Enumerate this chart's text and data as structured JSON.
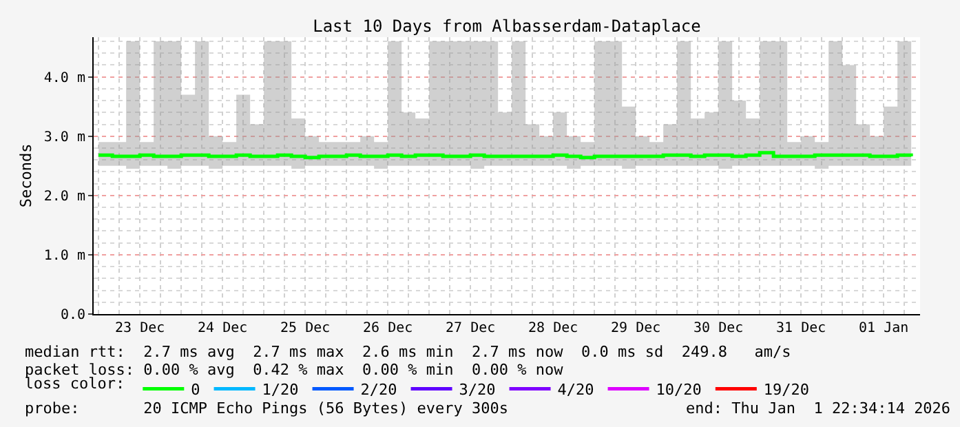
{
  "chart_data": {
    "type": "line",
    "title": "Last 10 Days from Albasserdam-Dataplace",
    "ylabel": "Seconds",
    "legend_title": "loss color:",
    "x": [
      "2025-12-23T00:00",
      "2025-12-23T04:00",
      "2025-12-23T08:00",
      "2025-12-23T12:00",
      "2025-12-23T16:00",
      "2025-12-23T20:00",
      "2025-12-24T00:00",
      "2025-12-24T04:00",
      "2025-12-24T08:00",
      "2025-12-24T12:00",
      "2025-12-24T16:00",
      "2025-12-24T20:00",
      "2025-12-25T00:00",
      "2025-12-25T04:00",
      "2025-12-25T08:00",
      "2025-12-25T12:00",
      "2025-12-25T16:00",
      "2025-12-25T20:00",
      "2025-12-26T00:00",
      "2025-12-26T04:00",
      "2025-12-26T08:00",
      "2025-12-26T12:00",
      "2025-12-26T16:00",
      "2025-12-26T20:00",
      "2025-12-27T00:00",
      "2025-12-27T04:00",
      "2025-12-27T08:00",
      "2025-12-27T12:00",
      "2025-12-27T16:00",
      "2025-12-27T20:00",
      "2025-12-28T00:00",
      "2025-12-28T04:00",
      "2025-12-28T08:00",
      "2025-12-28T12:00",
      "2025-12-28T16:00",
      "2025-12-28T20:00",
      "2025-12-29T00:00",
      "2025-12-29T04:00",
      "2025-12-29T08:00",
      "2025-12-29T12:00",
      "2025-12-29T16:00",
      "2025-12-29T20:00",
      "2025-12-30T00:00",
      "2025-12-30T04:00",
      "2025-12-30T08:00",
      "2025-12-30T12:00",
      "2025-12-30T16:00",
      "2025-12-30T20:00",
      "2025-12-31T00:00",
      "2025-12-31T04:00",
      "2025-12-31T08:00",
      "2025-12-31T12:00",
      "2025-12-31T16:00",
      "2025-12-31T20:00",
      "2026-01-01T00:00",
      "2026-01-01T04:00",
      "2026-01-01T08:00",
      "2026-01-01T12:00",
      "2026-01-01T16:00",
      "2026-01-01T20:00"
    ],
    "series": [
      {
        "name": "0",
        "color": "#00ff00",
        "values": [
          2.68,
          2.66,
          2.66,
          2.68,
          2.66,
          2.66,
          2.68,
          2.68,
          2.66,
          2.66,
          2.68,
          2.66,
          2.66,
          2.68,
          2.66,
          2.64,
          2.66,
          2.66,
          2.68,
          2.66,
          2.66,
          2.68,
          2.66,
          2.68,
          2.68,
          2.66,
          2.66,
          2.68,
          2.66,
          2.66,
          2.66,
          2.66,
          2.66,
          2.68,
          2.66,
          2.64,
          2.66,
          2.66,
          2.66,
          2.66,
          2.66,
          2.68,
          2.68,
          2.66,
          2.68,
          2.68,
          2.66,
          2.68,
          2.72,
          2.66,
          2.66,
          2.66,
          2.68,
          2.68,
          2.68,
          2.68,
          2.66,
          2.66,
          2.68,
          2.66
        ],
        "lower": [
          2.5,
          2.5,
          2.45,
          2.5,
          2.5,
          2.45,
          2.5,
          2.5,
          2.45,
          2.5,
          2.5,
          2.5,
          2.5,
          2.5,
          2.45,
          2.5,
          2.5,
          2.5,
          2.5,
          2.5,
          2.45,
          2.5,
          2.5,
          2.5,
          2.5,
          2.5,
          2.5,
          2.45,
          2.5,
          2.5,
          2.5,
          2.5,
          2.5,
          2.5,
          2.45,
          2.5,
          2.5,
          2.5,
          2.45,
          2.5,
          2.5,
          2.5,
          2.5,
          2.5,
          2.5,
          2.45,
          2.5,
          2.5,
          2.5,
          2.5,
          2.5,
          2.5,
          2.45,
          2.5,
          2.5,
          2.5,
          2.5,
          2.5,
          2.5,
          2.5
        ],
        "upper": [
          2.9,
          2.9,
          4.6,
          2.9,
          4.6,
          4.6,
          3.7,
          4.6,
          3.0,
          2.9,
          3.7,
          3.2,
          4.6,
          4.6,
          3.3,
          3.0,
          2.9,
          2.9,
          2.9,
          3.0,
          2.9,
          4.6,
          3.4,
          3.3,
          4.6,
          4.6,
          4.6,
          4.6,
          4.6,
          3.4,
          4.6,
          3.2,
          3.0,
          3.4,
          3.0,
          2.9,
          4.6,
          4.6,
          3.5,
          3.0,
          2.9,
          3.2,
          4.6,
          3.3,
          3.4,
          4.6,
          3.6,
          3.3,
          4.6,
          4.6,
          2.9,
          3.0,
          2.9,
          4.6,
          4.2,
          3.2,
          3.0,
          3.5,
          4.6,
          3.8
        ]
      },
      {
        "name": "1/20",
        "color": "#00b8ff",
        "values": [
          null,
          null,
          null,
          null,
          null,
          null,
          null,
          null,
          null,
          null,
          null,
          null,
          null,
          null,
          null,
          null,
          null,
          null,
          null,
          null,
          null,
          null,
          null,
          null,
          null,
          null,
          null,
          null,
          null,
          null,
          null,
          null,
          null,
          null,
          null,
          null,
          null,
          null,
          null,
          null,
          null,
          null,
          null,
          null,
          null,
          null,
          null,
          null,
          null,
          null,
          null,
          null,
          null,
          null,
          null,
          null,
          null,
          null,
          null,
          null
        ]
      },
      {
        "name": "2/20",
        "color": "#0059ff",
        "values": [
          null,
          null,
          null,
          null,
          null,
          null,
          null,
          null,
          null,
          null,
          null,
          null,
          null,
          null,
          null,
          null,
          null,
          null,
          null,
          null,
          null,
          null,
          null,
          null,
          null,
          null,
          null,
          null,
          null,
          null,
          null,
          null,
          null,
          null,
          null,
          null,
          null,
          null,
          null,
          null,
          null,
          null,
          null,
          null,
          null,
          null,
          null,
          null,
          null,
          null,
          null,
          null,
          null,
          null,
          null,
          null,
          null,
          null,
          null,
          null
        ]
      },
      {
        "name": "3/20",
        "color": "#5e00ff",
        "values": [
          null,
          null,
          null,
          null,
          null,
          null,
          null,
          null,
          null,
          null,
          null,
          null,
          null,
          null,
          null,
          null,
          null,
          null,
          null,
          null,
          null,
          null,
          null,
          null,
          null,
          null,
          null,
          null,
          null,
          null,
          null,
          null,
          null,
          null,
          null,
          null,
          null,
          null,
          null,
          null,
          null,
          null,
          null,
          null,
          null,
          null,
          null,
          null,
          null,
          null,
          null,
          null,
          null,
          null,
          null,
          null,
          null,
          null,
          null,
          null
        ]
      },
      {
        "name": "4/20",
        "color": "#7e00ff",
        "values": [
          null,
          null,
          null,
          null,
          null,
          null,
          null,
          null,
          null,
          null,
          null,
          null,
          null,
          null,
          null,
          null,
          null,
          null,
          null,
          null,
          null,
          null,
          null,
          null,
          null,
          null,
          null,
          null,
          null,
          null,
          null,
          null,
          null,
          null,
          null,
          null,
          null,
          null,
          null,
          null,
          null,
          null,
          null,
          null,
          null,
          null,
          null,
          null,
          null,
          null,
          null,
          null,
          null,
          null,
          null,
          null,
          null,
          null,
          null,
          null
        ]
      },
      {
        "name": "10/20",
        "color": "#dd00ff",
        "values": [
          null,
          null,
          null,
          null,
          null,
          null,
          null,
          null,
          null,
          null,
          null,
          null,
          null,
          null,
          null,
          null,
          null,
          null,
          null,
          null,
          null,
          null,
          null,
          null,
          null,
          null,
          null,
          null,
          null,
          null,
          null,
          null,
          null,
          null,
          null,
          null,
          null,
          null,
          null,
          null,
          null,
          null,
          null,
          null,
          null,
          null,
          null,
          null,
          null,
          null,
          null,
          null,
          null,
          null,
          null,
          null,
          null,
          null,
          null,
          null
        ]
      },
      {
        "name": "19/20",
        "color": "#ff0000",
        "values": [
          null,
          null,
          null,
          null,
          null,
          null,
          null,
          null,
          null,
          null,
          null,
          null,
          null,
          null,
          null,
          null,
          null,
          null,
          null,
          null,
          null,
          null,
          null,
          null,
          null,
          null,
          null,
          null,
          null,
          null,
          null,
          null,
          null,
          null,
          null,
          null,
          null,
          null,
          null,
          null,
          null,
          null,
          null,
          null,
          null,
          null,
          null,
          null,
          null,
          null,
          null,
          null,
          null,
          null,
          null,
          null,
          null,
          null,
          null,
          null
        ]
      }
    ],
    "xlim": [
      "2025-12-22T22:34",
      "2026-01-01T22:34"
    ],
    "xticks": [
      {
        "value": "2025-12-23T12:00",
        "label": "23 Dec"
      },
      {
        "value": "2025-12-24T12:00",
        "label": "24 Dec"
      },
      {
        "value": "2025-12-25T12:00",
        "label": "25 Dec"
      },
      {
        "value": "2025-12-26T12:00",
        "label": "26 Dec"
      },
      {
        "value": "2025-12-27T12:00",
        "label": "27 Dec"
      },
      {
        "value": "2025-12-28T12:00",
        "label": "28 Dec"
      },
      {
        "value": "2025-12-29T12:00",
        "label": "29 Dec"
      },
      {
        "value": "2025-12-30T12:00",
        "label": "30 Dec"
      },
      {
        "value": "2025-12-31T12:00",
        "label": "31 Dec"
      },
      {
        "value": "2026-01-01T12:00",
        "label": "01 Jan"
      }
    ],
    "ylim": [
      0,
      4.67
    ],
    "yticks": [
      {
        "value": 0,
        "label": "0.0"
      },
      {
        "value": 1,
        "label": "1.0 m"
      },
      {
        "value": 2,
        "label": "2.0 m"
      },
      {
        "value": 3,
        "label": "3.0 m"
      },
      {
        "value": 4,
        "label": "4.0 m"
      }
    ],
    "grid": true,
    "legend": "bottom",
    "line_style": "solid",
    "annotations": [
      "median rtt:  2.7 ms avg  2.7 ms max  2.6 ms min  2.7 ms now  0.0 ms sd  249.8   am/s",
      "packet loss: 0.00 % avg  0.42 % max  0.00 % min  0.00 % now",
      "probe:       20 ICMP Echo Pings (56 Bytes) every 300s",
      "end: Thu Jan  1 22:34:14 2026"
    ]
  }
}
